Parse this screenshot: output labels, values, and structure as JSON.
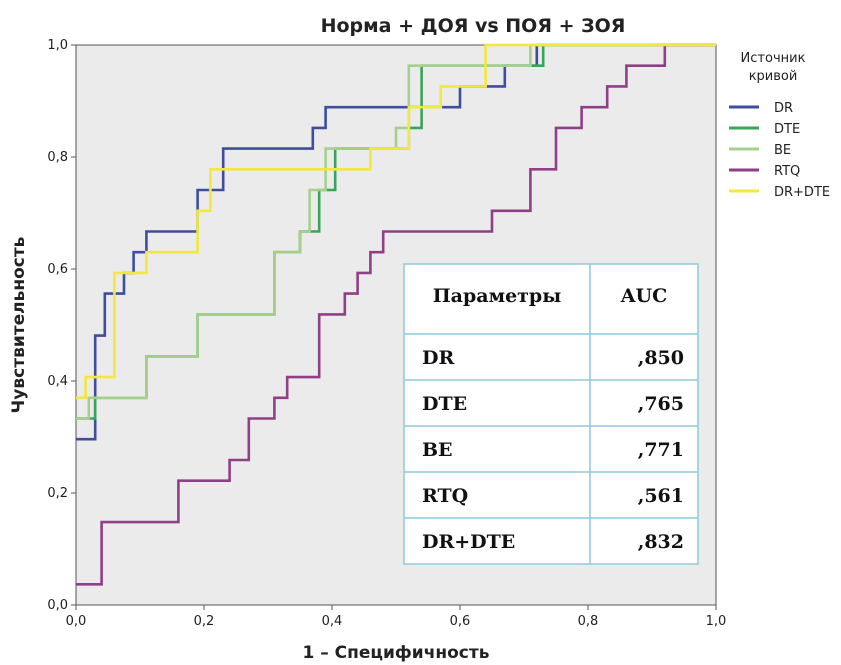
{
  "chart_data": {
    "type": "line",
    "title": "Норма + ДОЯ vs ПОЯ + ЗОЯ",
    "xlabel": "1 – Специфичность",
    "ylabel": "Чувствительность",
    "xlim": [
      0,
      1
    ],
    "ylim": [
      0,
      1
    ],
    "x_ticks": [
      "0,0",
      "0,2",
      "0,4",
      "0,6",
      "0,8",
      "1,0"
    ],
    "y_ticks": [
      "0,0",
      "0,2",
      "0,4",
      "0,6",
      "0,8",
      "1,0"
    ],
    "grid": false,
    "legend_title": "Источник кривой",
    "legend_position": "right",
    "series": [
      {
        "name": "DR",
        "color": "#3d4e9e",
        "points": [
          [
            0,
            0.296
          ],
          [
            0.03,
            0.296
          ],
          [
            0.03,
            0.481
          ],
          [
            0.045,
            0.481
          ],
          [
            0.045,
            0.556
          ],
          [
            0.075,
            0.556
          ],
          [
            0.075,
            0.593
          ],
          [
            0.09,
            0.593
          ],
          [
            0.09,
            0.63
          ],
          [
            0.11,
            0.63
          ],
          [
            0.11,
            0.667
          ],
          [
            0.19,
            0.667
          ],
          [
            0.19,
            0.741
          ],
          [
            0.23,
            0.741
          ],
          [
            0.23,
            0.815
          ],
          [
            0.37,
            0.815
          ],
          [
            0.37,
            0.852
          ],
          [
            0.39,
            0.852
          ],
          [
            0.39,
            0.889
          ],
          [
            0.6,
            0.889
          ],
          [
            0.6,
            0.926
          ],
          [
            0.67,
            0.926
          ],
          [
            0.67,
            0.963
          ],
          [
            0.72,
            0.963
          ],
          [
            0.72,
            1
          ],
          [
            1,
            1
          ]
        ]
      },
      {
        "name": "DTE",
        "color": "#3aa35a",
        "points": [
          [
            0,
            0.333
          ],
          [
            0.03,
            0.333
          ],
          [
            0.03,
            0.37
          ],
          [
            0.11,
            0.37
          ],
          [
            0.11,
            0.444
          ],
          [
            0.19,
            0.444
          ],
          [
            0.19,
            0.519
          ],
          [
            0.31,
            0.519
          ],
          [
            0.31,
            0.63
          ],
          [
            0.35,
            0.63
          ],
          [
            0.35,
            0.667
          ],
          [
            0.38,
            0.667
          ],
          [
            0.38,
            0.741
          ],
          [
            0.405,
            0.741
          ],
          [
            0.405,
            0.815
          ],
          [
            0.52,
            0.815
          ],
          [
            0.52,
            0.852
          ],
          [
            0.54,
            0.852
          ],
          [
            0.54,
            0.963
          ],
          [
            0.72,
            0.963
          ],
          [
            0.72,
            0.963
          ],
          [
            0.73,
            0.963
          ],
          [
            0.73,
            1
          ],
          [
            1,
            1
          ]
        ]
      },
      {
        "name": "BE",
        "color": "#a6cf8c",
        "points": [
          [
            0,
            0.333
          ],
          [
            0.02,
            0.333
          ],
          [
            0.02,
            0.37
          ],
          [
            0.11,
            0.37
          ],
          [
            0.11,
            0.444
          ],
          [
            0.19,
            0.444
          ],
          [
            0.19,
            0.519
          ],
          [
            0.31,
            0.519
          ],
          [
            0.31,
            0.63
          ],
          [
            0.35,
            0.63
          ],
          [
            0.35,
            0.667
          ],
          [
            0.365,
            0.667
          ],
          [
            0.365,
            0.741
          ],
          [
            0.39,
            0.741
          ],
          [
            0.39,
            0.815
          ],
          [
            0.5,
            0.815
          ],
          [
            0.5,
            0.852
          ],
          [
            0.52,
            0.852
          ],
          [
            0.52,
            0.963
          ],
          [
            0.71,
            0.963
          ],
          [
            0.71,
            1
          ],
          [
            1,
            1
          ]
        ]
      },
      {
        "name": "RTQ",
        "color": "#8e3f86",
        "points": [
          [
            0,
            0.037
          ],
          [
            0.04,
            0.037
          ],
          [
            0.04,
            0.148
          ],
          [
            0.16,
            0.148
          ],
          [
            0.16,
            0.222
          ],
          [
            0.24,
            0.222
          ],
          [
            0.24,
            0.259
          ],
          [
            0.27,
            0.259
          ],
          [
            0.27,
            0.333
          ],
          [
            0.31,
            0.333
          ],
          [
            0.31,
            0.37
          ],
          [
            0.33,
            0.37
          ],
          [
            0.33,
            0.407
          ],
          [
            0.38,
            0.407
          ],
          [
            0.38,
            0.519
          ],
          [
            0.42,
            0.519
          ],
          [
            0.42,
            0.556
          ],
          [
            0.44,
            0.556
          ],
          [
            0.44,
            0.593
          ],
          [
            0.46,
            0.593
          ],
          [
            0.46,
            0.63
          ],
          [
            0.48,
            0.63
          ],
          [
            0.48,
            0.667
          ],
          [
            0.65,
            0.667
          ],
          [
            0.65,
            0.704
          ],
          [
            0.71,
            0.704
          ],
          [
            0.71,
            0.778
          ],
          [
            0.75,
            0.778
          ],
          [
            0.75,
            0.852
          ],
          [
            0.79,
            0.852
          ],
          [
            0.79,
            0.889
          ],
          [
            0.83,
            0.889
          ],
          [
            0.83,
            0.926
          ],
          [
            0.86,
            0.926
          ],
          [
            0.86,
            0.963
          ],
          [
            0.92,
            0.963
          ],
          [
            0.92,
            1
          ],
          [
            1,
            1
          ]
        ]
      },
      {
        "name": "DR+DTE",
        "color": "#f2e83e",
        "points": [
          [
            0,
            0.37
          ],
          [
            0.015,
            0.37
          ],
          [
            0.015,
            0.407
          ],
          [
            0.06,
            0.407
          ],
          [
            0.06,
            0.593
          ],
          [
            0.11,
            0.593
          ],
          [
            0.11,
            0.63
          ],
          [
            0.19,
            0.63
          ],
          [
            0.19,
            0.704
          ],
          [
            0.21,
            0.704
          ],
          [
            0.21,
            0.778
          ],
          [
            0.46,
            0.778
          ],
          [
            0.46,
            0.815
          ],
          [
            0.52,
            0.815
          ],
          [
            0.52,
            0.889
          ],
          [
            0.57,
            0.889
          ],
          [
            0.57,
            0.926
          ],
          [
            0.64,
            0.926
          ],
          [
            0.64,
            1
          ],
          [
            1,
            1
          ]
        ]
      }
    ],
    "table": {
      "headers": [
        "Параметры",
        "AUC"
      ],
      "rows": [
        [
          "DR",
          ",850"
        ],
        [
          "DTE",
          ",765"
        ],
        [
          "BE",
          ",771"
        ],
        [
          "RTQ",
          ",561"
        ],
        [
          "DR+DTE",
          ",832"
        ]
      ]
    }
  }
}
